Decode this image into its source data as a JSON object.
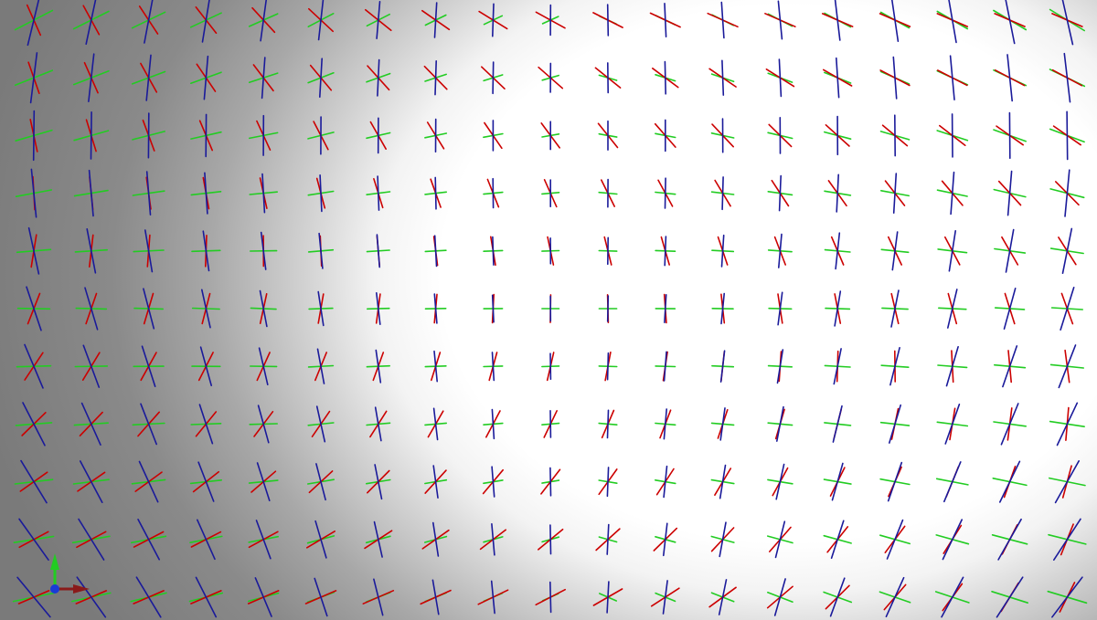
{
  "scene": {
    "type": "3d-viewport",
    "content": "orientation-glyph-field",
    "background": {
      "style": "gradient",
      "dark_color": "#7a7a7a",
      "light_color": "#ffffff"
    },
    "glyph": {
      "kind": "axis-cross",
      "axis_colors": {
        "x": "#cc0000",
        "y": "#22cc22",
        "z": "#1a1a9a"
      }
    },
    "grid": {
      "columns": 20,
      "rows": 11
    }
  },
  "orientation_widget": {
    "icon": "xyz-axes-triad-icon",
    "colors": {
      "x": "#8a1a1a",
      "y": "#22cc22",
      "z": "#1a3bd6"
    }
  }
}
